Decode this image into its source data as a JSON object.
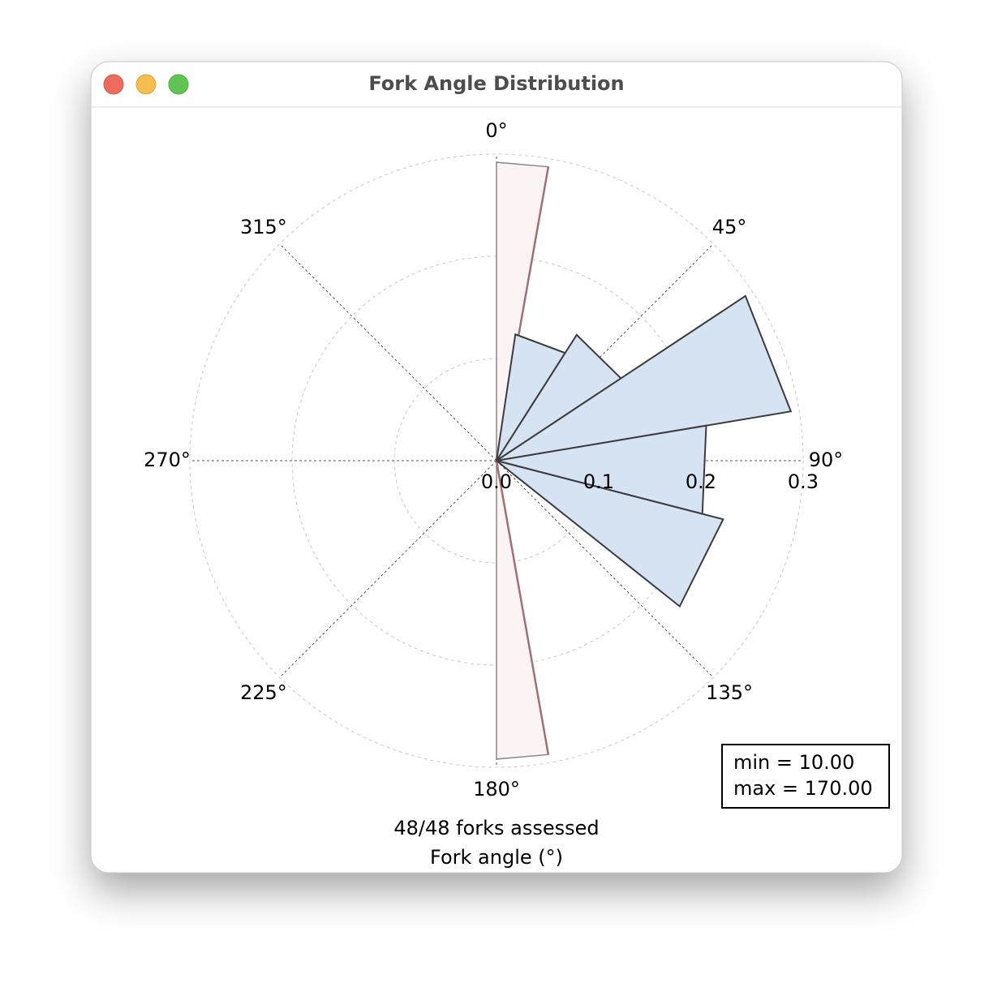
{
  "window_title": "Fork Angle Distribution",
  "chart_data": {
    "type": "polar-histogram",
    "bins": [
      8.5,
      32.5,
      56.5,
      80.5,
      104.5,
      128.5
    ],
    "values": [
      0.125,
      0.146,
      0.292,
      0.208,
      0.229
    ],
    "color": "#d5e3f2",
    "edge_color": "#3c3c3c",
    "range": {
      "values": [
        10,
        170
      ],
      "value_labels": [
        "min = 10.00",
        "max = 170.00"
      ],
      "color": "#fbf3f4",
      "edge_color": "#a07078"
    },
    "rlim": [
      0,
      0.3
    ],
    "rticks": [
      {
        "value": 0,
        "label": "0.0"
      },
      0.1,
      0.2,
      0.3
    ],
    "thetaticks": [
      {
        "value": 0,
        "label": "0°"
      },
      {
        "value": 45,
        "label": "45°"
      },
      {
        "value": 90,
        "label": "90°"
      },
      {
        "value": 135,
        "label": "135°"
      },
      {
        "value": 180,
        "label": "180°"
      },
      {
        "value": 225,
        "label": "225°"
      },
      {
        "value": 270,
        "label": "270°"
      },
      {
        "value": 315,
        "label": "315°"
      }
    ],
    "xlabel": [
      "48/48 forks assessed",
      "Fork angle (°)"
    ],
    "grid": true
  }
}
